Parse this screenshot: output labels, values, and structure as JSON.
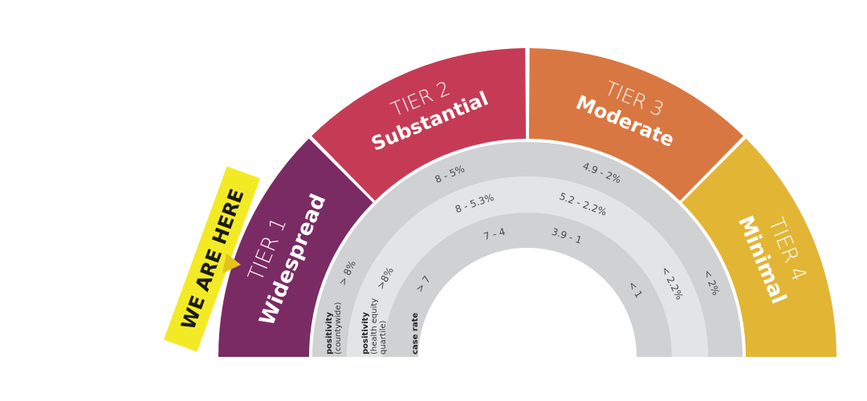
{
  "tiers": [
    {
      "num": "TIER 1",
      "name": "Widespread",
      "color": "#7b2b64"
    },
    {
      "num": "TIER 2",
      "name": "Substantial",
      "color": "#c53b55"
    },
    {
      "num": "TIER 3",
      "name": "Moderate",
      "color": "#d97742"
    },
    {
      "num": "TIER 4",
      "name": "Minimal",
      "color": "#e3b534"
    }
  ],
  "rings": [
    {
      "label_bold": "positivity",
      "label_sub": [
        "(countywide)"
      ],
      "values": [
        "> 8%",
        "8 - 5%",
        "4.9 - 2%",
        "< 2%"
      ],
      "color": "#d0d1d3"
    },
    {
      "label_bold": "positivity",
      "label_sub": [
        "(health equity",
        "quartile)"
      ],
      "values": [
        ">8%",
        "8 - 5.3%",
        "5.2 - 2.2%",
        "< 2.2%"
      ],
      "color": "#e3e4e5"
    },
    {
      "label_bold": "case rate",
      "label_sub": [],
      "values": [
        "> 7",
        "7 - 4",
        "3.9 - 1",
        "< 1"
      ],
      "color": "#d0d1d3"
    }
  ],
  "indicator": {
    "text": "WE ARE HERE",
    "color": "#f3ea26",
    "pointer_color": "#e4c41a"
  }
}
